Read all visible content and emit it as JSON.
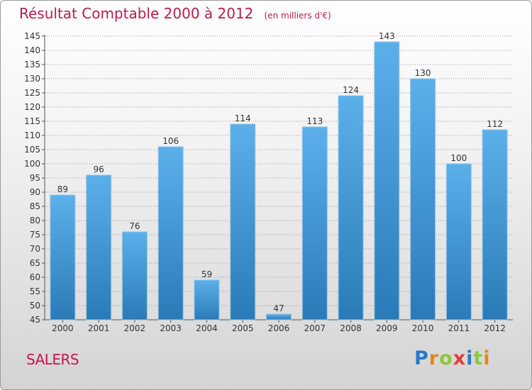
{
  "title": "Résultat Comptable 2000 à 2012",
  "unit": "(en milliers d'€)",
  "town": "SALERS",
  "brand": {
    "letters": [
      "P",
      "r",
      "o",
      "x",
      "i",
      "t",
      "i"
    ],
    "colors": [
      "#2b78c8",
      "#e08a16",
      "#8cc63f",
      "#e53a3a",
      "#2b78c8",
      "#8cc63f",
      "#e08a16"
    ]
  },
  "colors": {
    "title": "#b81c4a",
    "bar_top": "#5cb0ea",
    "bar_bottom": "#2b7ab8",
    "axis": "#555555",
    "grid": "#999999"
  },
  "chart_data": {
    "type": "bar",
    "title": "Résultat Comptable 2000 à 2012",
    "xlabel": "",
    "ylabel": "",
    "categories": [
      "2000",
      "2001",
      "2002",
      "2003",
      "2004",
      "2005",
      "2006",
      "2007",
      "2008",
      "2009",
      "2010",
      "2011",
      "2012"
    ],
    "values": [
      89,
      96,
      76,
      106,
      59,
      114,
      47,
      113,
      124,
      143,
      130,
      100,
      112
    ],
    "ylim": [
      45,
      145
    ],
    "yticks": [
      45,
      50,
      55,
      60,
      65,
      70,
      75,
      80,
      85,
      90,
      95,
      100,
      105,
      110,
      115,
      120,
      125,
      130,
      135,
      140,
      145
    ],
    "grid": true
  }
}
